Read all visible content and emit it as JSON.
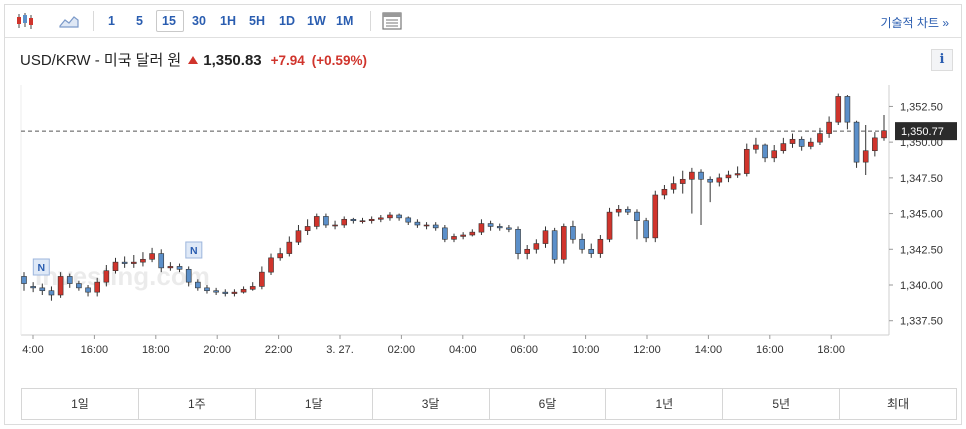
{
  "toolbar": {
    "intervals": [
      "1",
      "5",
      "15",
      "30",
      "1H",
      "5H",
      "1D",
      "1W",
      "1M"
    ],
    "active_interval": "15",
    "technical_link": "기술적 차트 »"
  },
  "header": {
    "title": "USD/KRW - 미국 달러 원",
    "price": "1,350.83",
    "change": "+7.94",
    "change_pct": "(+0.59%)",
    "info_label": "i"
  },
  "colors": {
    "up": "#d0342c",
    "down": "#5b8fc9",
    "link": "#2a5db0"
  },
  "chart_data": {
    "type": "candlestick",
    "title": "",
    "xlabel": "",
    "ylabel": "",
    "ylim": [
      1336.5,
      1354.0
    ],
    "y_ticks": [
      "1,352.50",
      "1,350.00",
      "1,347.50",
      "1,345.00",
      "1,342.50",
      "1,340.00",
      "1,337.50"
    ],
    "x_ticks": [
      "4:00",
      "16:00",
      "18:00",
      "20:00",
      "22:00",
      "3. 27.",
      "02:00",
      "04:00",
      "06:00",
      "10:00",
      "12:00",
      "14:00",
      "16:00",
      "18:00"
    ],
    "last_price_label": "1,350.77",
    "last_price_value": 1350.77,
    "news_markers": [
      "N",
      "N"
    ],
    "watermark": "Investing.com",
    "closes": [
      1340.1,
      1339.8,
      1339.6,
      1339.3,
      1340.6,
      1340.1,
      1339.8,
      1339.5,
      1340.2,
      1341.0,
      1341.6,
      1341.5,
      1341.6,
      1341.8,
      1342.2,
      1341.2,
      1341.3,
      1341.1,
      1340.2,
      1339.8,
      1339.6,
      1339.5,
      1339.4,
      1339.5,
      1339.7,
      1339.9,
      1340.9,
      1341.9,
      1342.2,
      1343.0,
      1343.8,
      1344.1,
      1344.8,
      1344.2,
      1344.2,
      1344.6,
      1344.5,
      1344.5,
      1344.6,
      1344.7,
      1344.9,
      1344.7,
      1344.4,
      1344.2,
      1344.2,
      1344.0,
      1343.2,
      1343.4,
      1343.5,
      1343.7,
      1344.3,
      1344.1,
      1344.0,
      1343.9,
      1342.2,
      1342.5,
      1342.9,
      1343.8,
      1341.8,
      1344.1,
      1343.2,
      1342.5,
      1342.2,
      1343.2,
      1345.1,
      1345.3,
      1345.1,
      1344.5,
      1343.3,
      1346.3,
      1346.7,
      1347.1,
      1347.4,
      1347.9,
      1347.4,
      1347.2,
      1347.5,
      1347.7,
      1347.8,
      1349.5,
      1349.8,
      1348.9,
      1349.4,
      1349.9,
      1350.2,
      1349.7,
      1350.0,
      1350.6,
      1351.4,
      1353.2,
      1351.4,
      1348.6,
      1349.4,
      1350.3,
      1350.8
    ],
    "opens": [
      1340.6,
      1339.9,
      1339.8,
      1339.6,
      1339.3,
      1340.6,
      1340.1,
      1339.8,
      1339.5,
      1340.2,
      1341.0,
      1341.6,
      1341.5,
      1341.6,
      1341.8,
      1342.2,
      1341.2,
      1341.3,
      1341.1,
      1340.2,
      1339.8,
      1339.6,
      1339.5,
      1339.4,
      1339.5,
      1339.7,
      1339.9,
      1340.9,
      1341.9,
      1342.2,
      1343.0,
      1343.8,
      1344.1,
      1344.8,
      1344.2,
      1344.2,
      1344.6,
      1344.5,
      1344.5,
      1344.6,
      1344.7,
      1344.9,
      1344.7,
      1344.4,
      1344.2,
      1344.2,
      1344.0,
      1343.2,
      1343.4,
      1343.5,
      1343.7,
      1344.3,
      1344.1,
      1344.0,
      1343.9,
      1342.2,
      1342.5,
      1342.9,
      1343.8,
      1341.8,
      1344.1,
      1343.2,
      1342.5,
      1342.2,
      1343.2,
      1345.1,
      1345.3,
      1345.1,
      1344.5,
      1343.3,
      1346.3,
      1346.7,
      1347.1,
      1347.4,
      1347.9,
      1347.4,
      1347.2,
      1347.5,
      1347.7,
      1347.8,
      1349.5,
      1349.8,
      1348.9,
      1349.4,
      1349.9,
      1350.2,
      1349.7,
      1350.0,
      1350.6,
      1351.4,
      1353.2,
      1351.4,
      1348.6,
      1349.4,
      1350.3
    ],
    "highs": [
      1340.9,
      1340.2,
      1340.1,
      1339.9,
      1340.9,
      1340.8,
      1340.3,
      1340.0,
      1340.5,
      1341.4,
      1341.9,
      1342.0,
      1342.1,
      1342.3,
      1342.6,
      1342.5,
      1341.6,
      1341.5,
      1341.3,
      1340.4,
      1340.0,
      1339.8,
      1339.7,
      1339.7,
      1339.9,
      1340.2,
      1341.3,
      1342.2,
      1342.6,
      1343.4,
      1344.2,
      1344.6,
      1345.0,
      1345.0,
      1344.5,
      1344.8,
      1344.7,
      1344.7,
      1344.8,
      1344.9,
      1345.1,
      1345.0,
      1344.8,
      1344.6,
      1344.4,
      1344.4,
      1344.2,
      1343.6,
      1343.7,
      1343.9,
      1344.6,
      1344.5,
      1344.3,
      1344.2,
      1344.1,
      1342.8,
      1343.2,
      1344.1,
      1344.0,
      1344.3,
      1344.5,
      1343.6,
      1342.9,
      1343.5,
      1345.4,
      1345.6,
      1345.5,
      1345.3,
      1344.7,
      1346.6,
      1347.0,
      1347.6,
      1348.0,
      1348.2,
      1348.1,
      1347.6,
      1347.8,
      1348.0,
      1348.3,
      1349.9,
      1350.3,
      1349.9,
      1349.8,
      1350.3,
      1350.6,
      1350.4,
      1350.3,
      1351.0,
      1351.8,
      1353.4,
      1353.3,
      1351.5,
      1351.2,
      1350.7,
      1351.9
    ],
    "lows": [
      1339.6,
      1339.5,
      1339.3,
      1338.9,
      1339.1,
      1339.8,
      1339.6,
      1339.2,
      1339.2,
      1339.9,
      1340.8,
      1341.2,
      1341.2,
      1341.3,
      1341.6,
      1340.9,
      1341.0,
      1340.9,
      1339.9,
      1339.6,
      1339.4,
      1339.3,
      1339.2,
      1339.2,
      1339.4,
      1339.6,
      1339.7,
      1340.7,
      1341.7,
      1342.0,
      1342.8,
      1343.5,
      1343.9,
      1344.0,
      1343.9,
      1344.0,
      1344.3,
      1344.3,
      1344.3,
      1344.4,
      1344.5,
      1344.5,
      1344.2,
      1344.0,
      1343.9,
      1343.8,
      1343.0,
      1343.0,
      1343.2,
      1343.4,
      1343.5,
      1343.8,
      1343.8,
      1343.7,
      1341.8,
      1341.8,
      1342.2,
      1342.6,
      1341.5,
      1341.5,
      1342.9,
      1342.2,
      1341.9,
      1341.9,
      1343.0,
      1344.8,
      1344.9,
      1343.2,
      1343.0,
      1343.0,
      1346.0,
      1346.4,
      1346.4,
      1345.0,
      1344.2,
      1345.8,
      1346.9,
      1347.2,
      1347.5,
      1347.6,
      1349.2,
      1348.6,
      1348.6,
      1349.2,
      1349.6,
      1349.4,
      1349.5,
      1349.8,
      1350.3,
      1351.2,
      1350.9,
      1348.2,
      1347.7,
      1349.0,
      1350.1
    ]
  },
  "ranges": [
    "1일",
    "1주",
    "1달",
    "3달",
    "6달",
    "1년",
    "5년",
    "최대"
  ]
}
